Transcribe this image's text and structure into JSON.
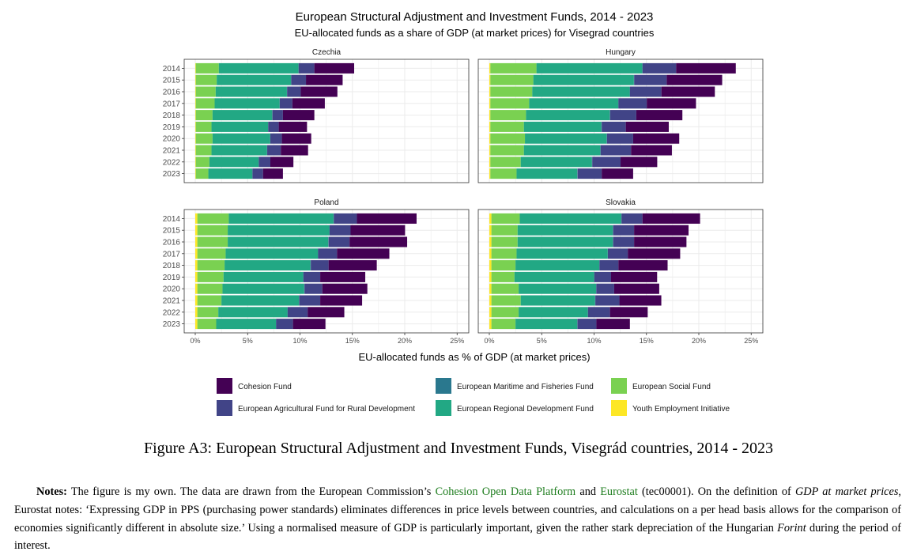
{
  "chart_data": {
    "type": "bar",
    "orientation": "horizontal",
    "stacked": true,
    "title": "European Structural Adjustment and Investment Funds, 2014 - 2023",
    "subtitle": "EU-allocated funds as a share of GDP (at market prices) for Visegrad countries",
    "xlabel": "EU-allocated funds as % of GDP (at market prices)",
    "x_ticks": [
      "0%",
      "5%",
      "10%",
      "15%",
      "20%",
      "25%"
    ],
    "xlim": [
      0,
      25
    ],
    "legend_position": "bottom",
    "series": [
      {
        "key": "yei",
        "name": "Youth Employment Initiative",
        "color": "#fde725"
      },
      {
        "key": "esf",
        "name": "European Social Fund",
        "color": "#7ad151"
      },
      {
        "key": "erdf",
        "name": "European Regional Development Fund",
        "color": "#22a884"
      },
      {
        "key": "emff",
        "name": "European Maritime and Fisheries Fund",
        "color": "#2a788e"
      },
      {
        "key": "eafrd",
        "name": "European Agricultural Fund for Rural Development",
        "color": "#414487"
      },
      {
        "key": "cf",
        "name": "Cohesion Fund",
        "color": "#440154"
      }
    ],
    "legend_layout": [
      [
        "cf",
        "emff",
        "esf"
      ],
      [
        "eafrd",
        "erdf",
        "yei"
      ]
    ],
    "panels": [
      {
        "title": "Czechia",
        "years": [
          "2014",
          "2015",
          "2016",
          "2017",
          "2018",
          "2019",
          "2020",
          "2021",
          "2022",
          "2023"
        ],
        "yei": [
          0.05,
          0.05,
          0.05,
          0.05,
          0.05,
          0.05,
          0.05,
          0.05,
          0.05,
          0.05
        ],
        "esf": [
          2.2,
          2.0,
          1.9,
          1.8,
          1.6,
          1.5,
          1.6,
          1.5,
          1.3,
          1.2
        ],
        "erdf": [
          7.6,
          7.1,
          6.8,
          6.2,
          5.7,
          5.4,
          5.5,
          5.3,
          4.7,
          4.2
        ],
        "emff": [
          0.02,
          0.02,
          0.02,
          0.02,
          0.02,
          0.02,
          0.02,
          0.02,
          0.02,
          0.02
        ],
        "eafrd": [
          1.5,
          1.4,
          1.3,
          1.2,
          1.0,
          1.0,
          1.1,
          1.3,
          1.1,
          1.0
        ],
        "cf": [
          3.8,
          3.5,
          3.5,
          3.1,
          3.0,
          2.7,
          2.8,
          2.6,
          2.2,
          1.9
        ]
      },
      {
        "title": "Hungary",
        "years": [
          "2014",
          "2015",
          "2016",
          "2017",
          "2018",
          "2019",
          "2020",
          "2021",
          "2022",
          "2023"
        ],
        "yei": [
          0.1,
          0.1,
          0.1,
          0.1,
          0.1,
          0.1,
          0.1,
          0.1,
          0.1,
          0.1
        ],
        "esf": [
          4.4,
          4.1,
          4.0,
          3.7,
          3.4,
          3.2,
          3.3,
          3.2,
          2.9,
          2.5
        ],
        "erdf": [
          10.1,
          9.6,
          9.3,
          8.5,
          8.0,
          7.4,
          7.8,
          7.3,
          6.8,
          5.8
        ],
        "emff": [
          0.03,
          0.03,
          0.03,
          0.03,
          0.03,
          0.03,
          0.03,
          0.03,
          0.03,
          0.03
        ],
        "eafrd": [
          3.2,
          3.1,
          3.0,
          2.7,
          2.5,
          2.3,
          2.5,
          2.9,
          2.7,
          2.3
        ],
        "cf": [
          5.7,
          5.3,
          5.1,
          4.7,
          4.4,
          4.1,
          4.4,
          3.9,
          3.5,
          3.0
        ]
      },
      {
        "title": "Poland",
        "years": [
          "2014",
          "2015",
          "2016",
          "2017",
          "2018",
          "2019",
          "2020",
          "2021",
          "2022",
          "2023"
        ],
        "yei": [
          0.2,
          0.2,
          0.2,
          0.2,
          0.2,
          0.2,
          0.2,
          0.2,
          0.2,
          0.2
        ],
        "esf": [
          3.0,
          2.9,
          2.9,
          2.7,
          2.6,
          2.5,
          2.4,
          2.3,
          2.0,
          1.8
        ],
        "erdf": [
          10.0,
          9.7,
          9.6,
          8.8,
          8.2,
          7.6,
          7.8,
          7.4,
          6.6,
          5.7
        ],
        "emff": [
          0.03,
          0.03,
          0.03,
          0.03,
          0.03,
          0.03,
          0.03,
          0.03,
          0.03,
          0.03
        ],
        "eafrd": [
          2.2,
          2.0,
          2.0,
          1.8,
          1.7,
          1.6,
          1.7,
          2.0,
          1.9,
          1.6
        ],
        "cf": [
          5.7,
          5.2,
          5.5,
          5.0,
          4.6,
          4.3,
          4.3,
          4.0,
          3.5,
          3.1
        ]
      },
      {
        "title": "Slovakia",
        "years": [
          "2014",
          "2015",
          "2016",
          "2017",
          "2018",
          "2019",
          "2020",
          "2021",
          "2022",
          "2023"
        ],
        "yei": [
          0.2,
          0.2,
          0.2,
          0.2,
          0.2,
          0.2,
          0.2,
          0.2,
          0.2,
          0.2
        ],
        "esf": [
          2.7,
          2.5,
          2.5,
          2.4,
          2.3,
          2.2,
          2.6,
          2.8,
          2.6,
          2.3
        ],
        "erdf": [
          9.7,
          9.1,
          9.1,
          8.7,
          8.0,
          7.6,
          7.4,
          7.1,
          6.6,
          5.9
        ],
        "emff": [
          0.02,
          0.02,
          0.02,
          0.02,
          0.02,
          0.02,
          0.02,
          0.02,
          0.02,
          0.02
        ],
        "eafrd": [
          2.0,
          2.0,
          2.0,
          1.9,
          1.8,
          1.6,
          1.7,
          2.3,
          2.1,
          1.8
        ],
        "cf": [
          5.5,
          5.2,
          5.0,
          5.0,
          4.7,
          4.4,
          4.3,
          4.0,
          3.6,
          3.2
        ]
      }
    ]
  },
  "caption": {
    "text": "Figure A3: European Structural Adjustment and Investment Funds, Visegrád countries, 2014 - 2023"
  },
  "notes": {
    "label": "Notes:",
    "t1": " The figure is my own. The data are drawn from the European Commission’s ",
    "link1": "Cohesion Open Data Platform",
    "t2": " and ",
    "link2": "Eurostat",
    "t3": " (tec00001). On the definition of ",
    "term1": "GDP at market prices",
    "t4": ", Eurostat notes: ‘Expressing GDP in PPS (purchasing power standards) eliminates differences in price levels between countries, and calculations on a per head basis allows for the comparison of economies significantly different in absolute size.’ Using a normalised measure of GDP is particularly important, given the rather stark depreciation of the Hungarian ",
    "term2": "Forint",
    "t5": " during the period of interest."
  }
}
